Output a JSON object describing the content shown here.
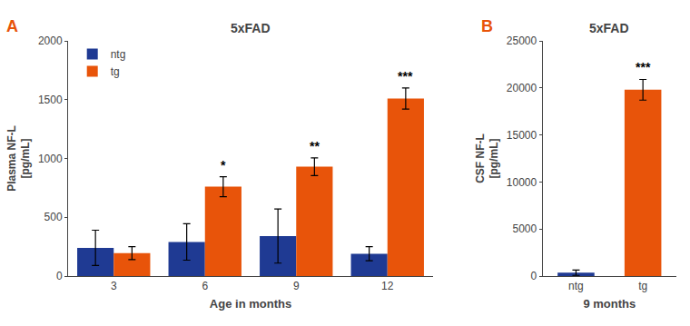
{
  "chart_data": [
    {
      "type": "bar",
      "title": "5xFAD",
      "xlabel": "Age in months",
      "ylabel": "Plasma NF-L\n[pg/mL]",
      "categories": [
        "3",
        "6",
        "9",
        "12"
      ],
      "series": [
        {
          "name": "ntg",
          "color": "#1f3a93",
          "values": [
            240,
            290,
            340,
            190
          ],
          "errors": [
            150,
            155,
            230,
            60
          ]
        },
        {
          "name": "tg",
          "color": "#e8540a",
          "values": [
            195,
            760,
            930,
            1510
          ],
          "errors": [
            55,
            85,
            75,
            90
          ]
        }
      ],
      "ylim": [
        0,
        2000
      ],
      "yticks": [
        0,
        500,
        1000,
        1500,
        2000
      ],
      "grid": false,
      "legend": "upper left",
      "annotations": [
        {
          "text": "A",
          "color": "#e8540a"
        },
        {
          "text": "*",
          "category": "6",
          "series": "tg"
        },
        {
          "text": "**",
          "category": "9",
          "series": "tg"
        },
        {
          "text": "***",
          "category": "12",
          "series": "tg"
        }
      ]
    },
    {
      "type": "bar",
      "title": "5xFAD",
      "xlabel": "9 months",
      "ylabel": "CSF NF-L\n[pg/mL]",
      "categories": [
        "ntg",
        "tg"
      ],
      "values": [
        350,
        19800
      ],
      "errors": [
        280,
        1100
      ],
      "colors": [
        "#1f3a93",
        "#e8540a"
      ],
      "ylim": [
        0,
        25000
      ],
      "yticks": [
        0,
        5000,
        10000,
        15000,
        20000,
        25000
      ],
      "grid": false,
      "annotations": [
        {
          "text": "B",
          "color": "#e8540a"
        },
        {
          "text": "***",
          "category": "tg"
        }
      ]
    }
  ]
}
